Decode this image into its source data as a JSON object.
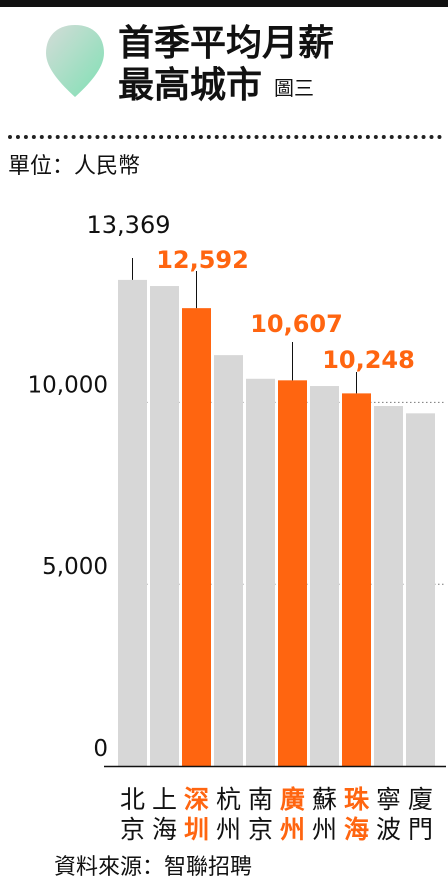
{
  "header": {
    "title_line1": "首季平均月薪",
    "title_line2": "最高城市",
    "figure_tag": "圖三",
    "unit": "單位：人民幣",
    "source": "資料來源：智聯招聘"
  },
  "colors": {
    "bar_default": "#d7d7d7",
    "bar_highlight": "#ff6510",
    "drop_icon": "#b9ecd6",
    "text": "#111111"
  },
  "chart_data": {
    "type": "bar",
    "title": "首季平均月薪最高城市",
    "unit": "單位：人民幣",
    "categories": [
      "北京",
      "上海",
      "深圳",
      "杭州",
      "南京",
      "廣州",
      "蘇州",
      "珠海",
      "寧波",
      "廈門"
    ],
    "values": [
      13369,
      13200,
      12592,
      11300,
      10650,
      10607,
      10450,
      10248,
      9900,
      9700
    ],
    "highlight": [
      false,
      false,
      true,
      false,
      false,
      true,
      false,
      true,
      false,
      false
    ],
    "data_labels": [
      {
        "index": 0,
        "text": "13,369"
      },
      {
        "index": 2,
        "text": "12,592"
      },
      {
        "index": 5,
        "text": "10,607"
      },
      {
        "index": 7,
        "text": "10,248"
      }
    ],
    "y_ticks": [
      {
        "value": 0,
        "label": "0"
      },
      {
        "value": 5000,
        "label": "5,000"
      },
      {
        "value": 10000,
        "label": "10,000"
      }
    ],
    "ylim": [
      0,
      15000
    ],
    "gridlines": "dotted at 5,000 and 10,000",
    "legend": "none"
  }
}
